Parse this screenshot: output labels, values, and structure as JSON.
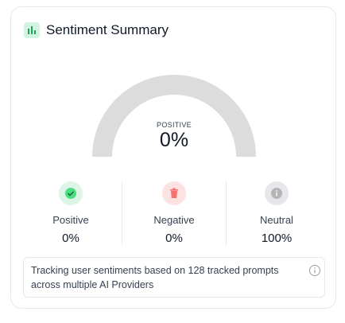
{
  "header": {
    "title": "Sentiment Summary"
  },
  "gauge": {
    "label": "POSITIVE",
    "value": "0%"
  },
  "stats": [
    {
      "label": "Positive",
      "value": "0%"
    },
    {
      "label": "Negative",
      "value": "0%"
    },
    {
      "label": "Neutral",
      "value": "100%"
    }
  ],
  "footer": {
    "text": "Tracking user sentiments based on 128 tracked prompts across multiple AI Providers"
  }
}
